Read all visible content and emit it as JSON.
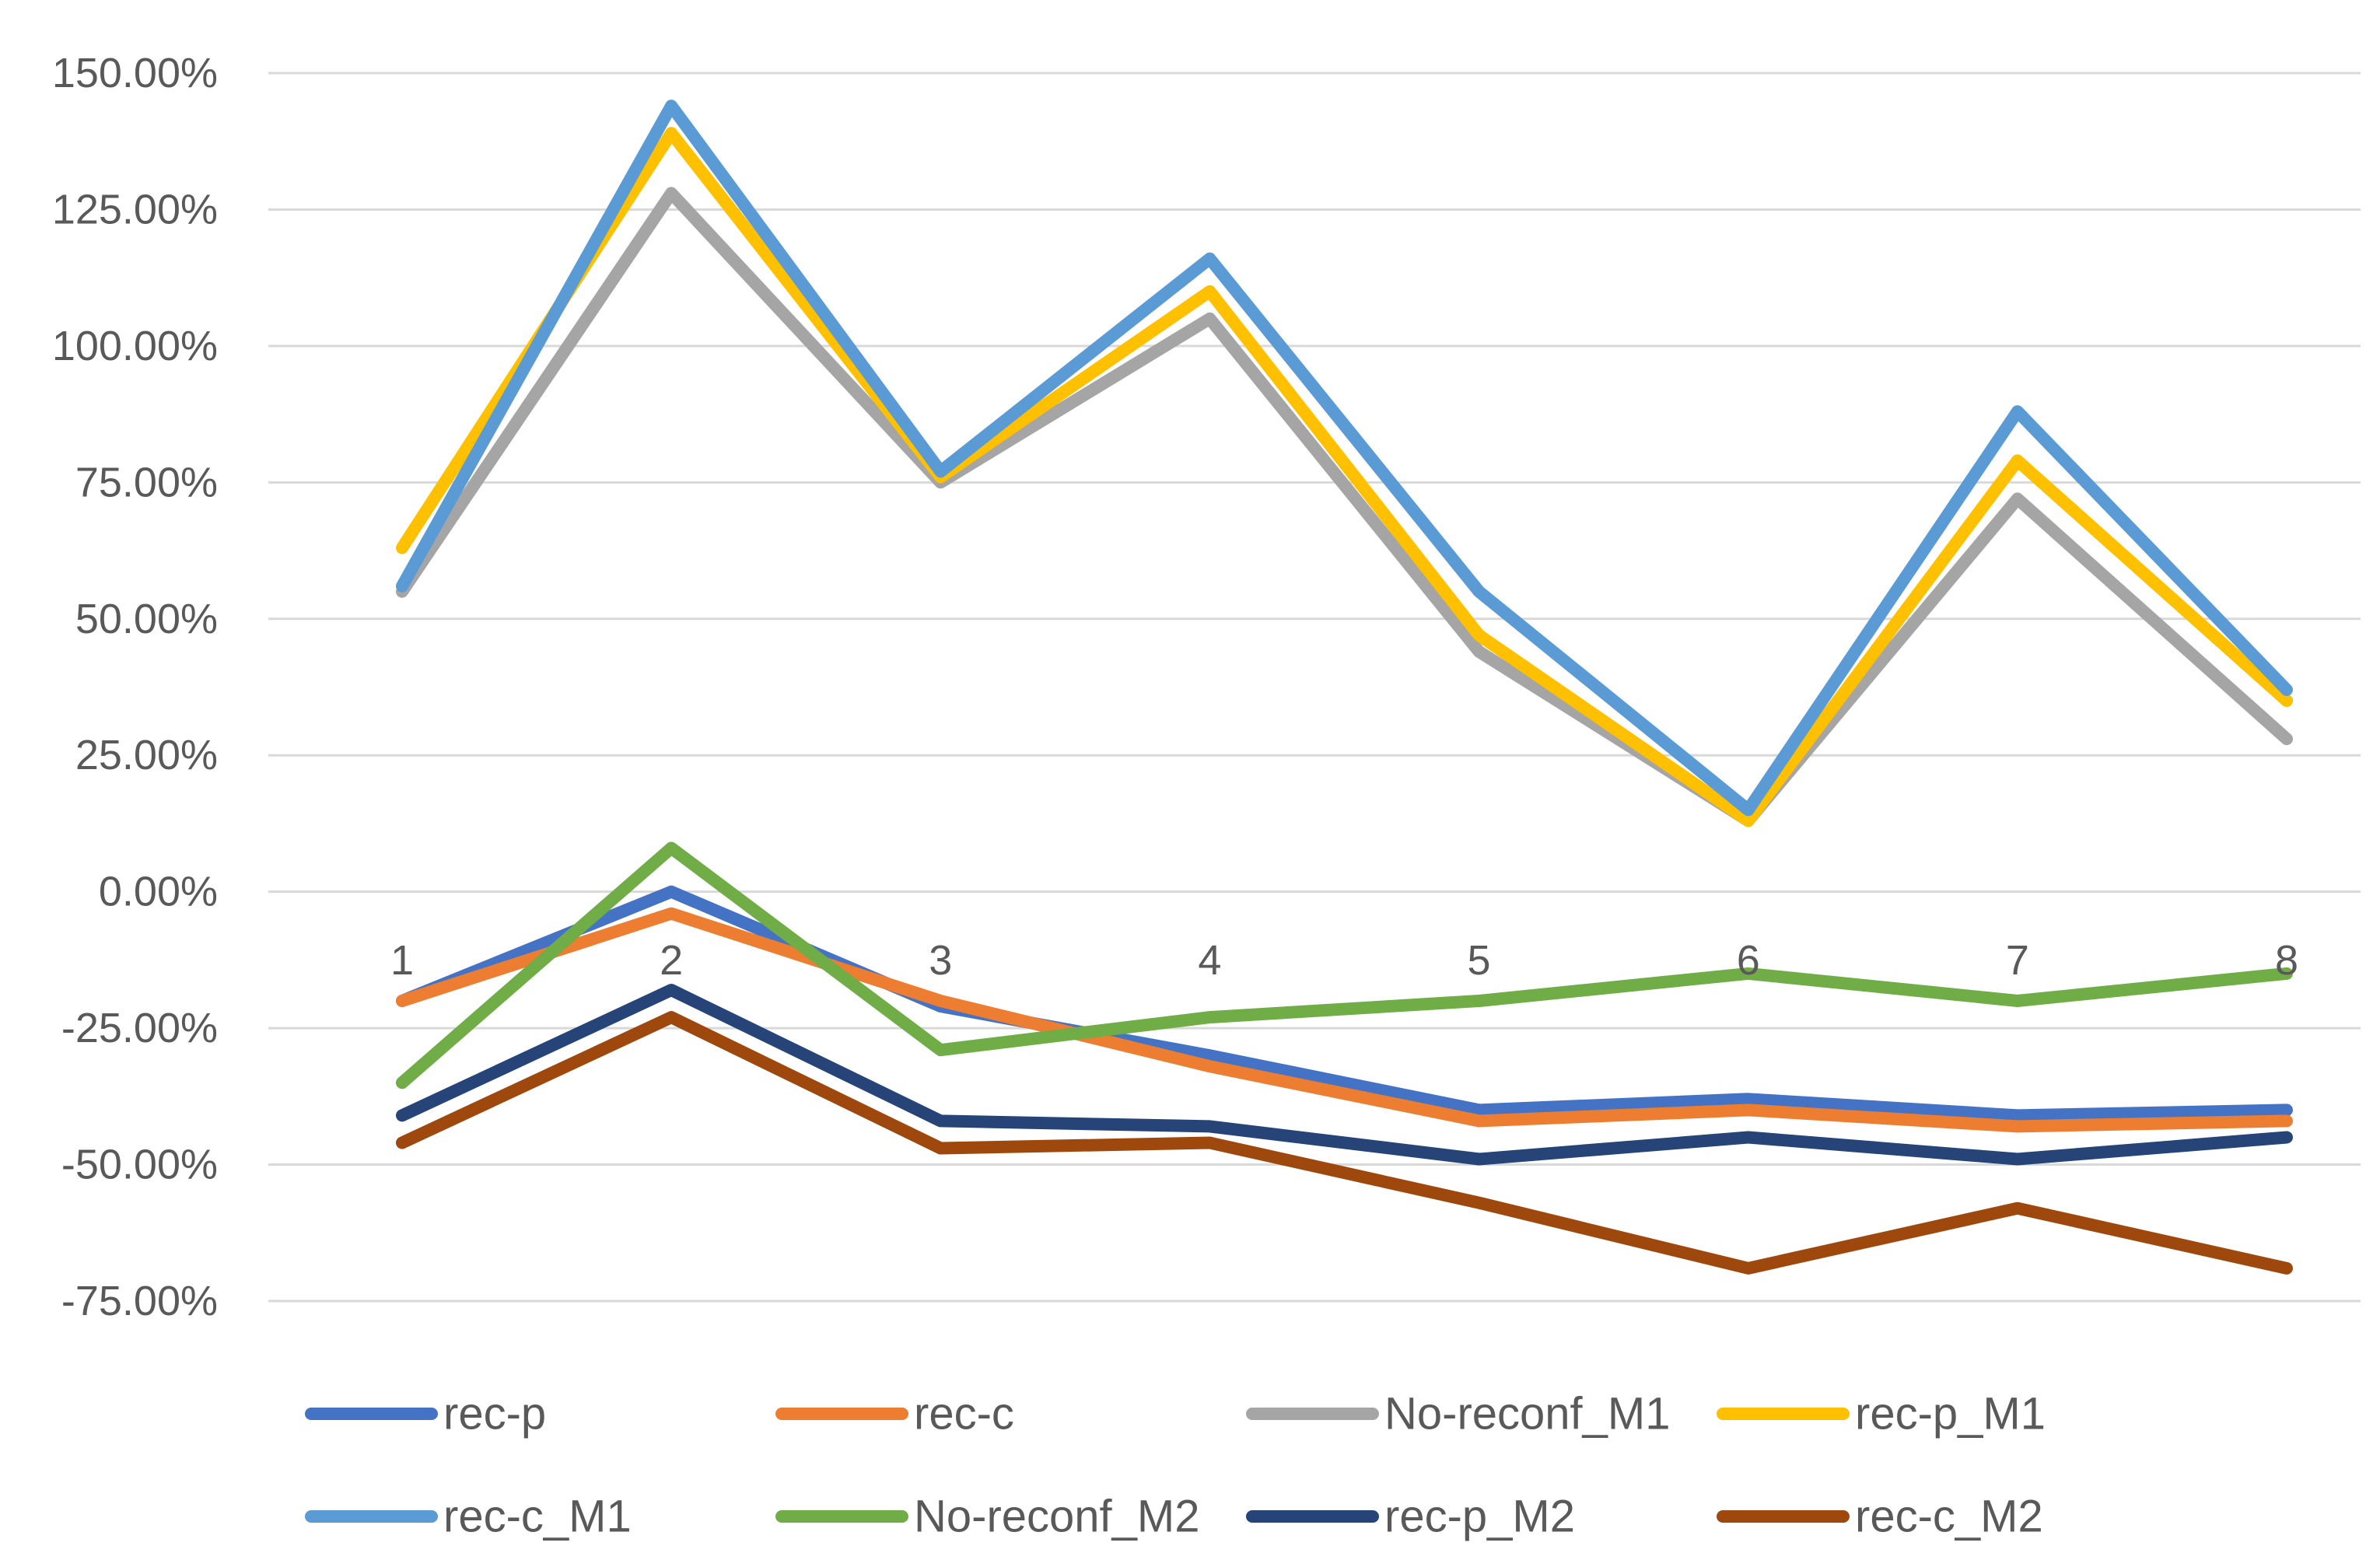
{
  "chart_data": {
    "type": "line",
    "title": "",
    "xlabel": "",
    "ylabel": "",
    "grid": true,
    "legend_position": "bottom",
    "ylim": [
      -0.75,
      1.5
    ],
    "y_ticks": [
      1.5,
      1.25,
      1.0,
      0.75,
      0.5,
      0.25,
      0.0,
      -0.25,
      -0.5,
      -0.75
    ],
    "y_tick_labels": [
      "150.00%",
      "125.00%",
      "100.00%",
      "75.00%",
      "50.00%",
      "25.00%",
      "0.00%",
      "-25.00%",
      "-50.00%",
      "-75.00%"
    ],
    "categories": [
      "1",
      "2",
      "3",
      "4",
      "5",
      "6",
      "7",
      "8"
    ],
    "series": [
      {
        "name": "rec-p",
        "color": "#4472C4",
        "values": [
          -0.2,
          0.0,
          -0.21,
          -0.3,
          -0.4,
          -0.38,
          -0.41,
          -0.4
        ]
      },
      {
        "name": "rec-c",
        "color": "#ED7D31",
        "values": [
          -0.2,
          -0.04,
          -0.2,
          -0.32,
          -0.42,
          -0.4,
          -0.43,
          -0.42
        ]
      },
      {
        "name": "No-reconf_M1",
        "color": "#A5A5A5",
        "values": [
          0.55,
          1.28,
          0.75,
          1.05,
          0.44,
          0.13,
          0.72,
          0.28
        ]
      },
      {
        "name": "rec-p_M1",
        "color": "#FFC000",
        "values": [
          0.63,
          1.39,
          0.76,
          1.1,
          0.47,
          0.13,
          0.79,
          0.35
        ]
      },
      {
        "name": "rec-c_M1",
        "color": "#5B9BD5",
        "values": [
          0.56,
          1.44,
          0.77,
          1.16,
          0.55,
          0.15,
          0.88,
          0.37
        ]
      },
      {
        "name": "No-reconf_M2",
        "color": "#70AD47",
        "values": [
          -0.35,
          0.08,
          -0.29,
          -0.23,
          -0.2,
          -0.15,
          -0.2,
          -0.15
        ]
      },
      {
        "name": "rec-p_M2",
        "color": "#264478",
        "values": [
          -0.41,
          -0.18,
          -0.42,
          -0.43,
          -0.49,
          -0.45,
          -0.49,
          -0.45
        ]
      },
      {
        "name": "rec-c_M2",
        "color": "#9E480E",
        "values": [
          -0.46,
          -0.23,
          -0.47,
          -0.46,
          -0.57,
          -0.69,
          -0.58,
          -0.69
        ]
      }
    ]
  }
}
